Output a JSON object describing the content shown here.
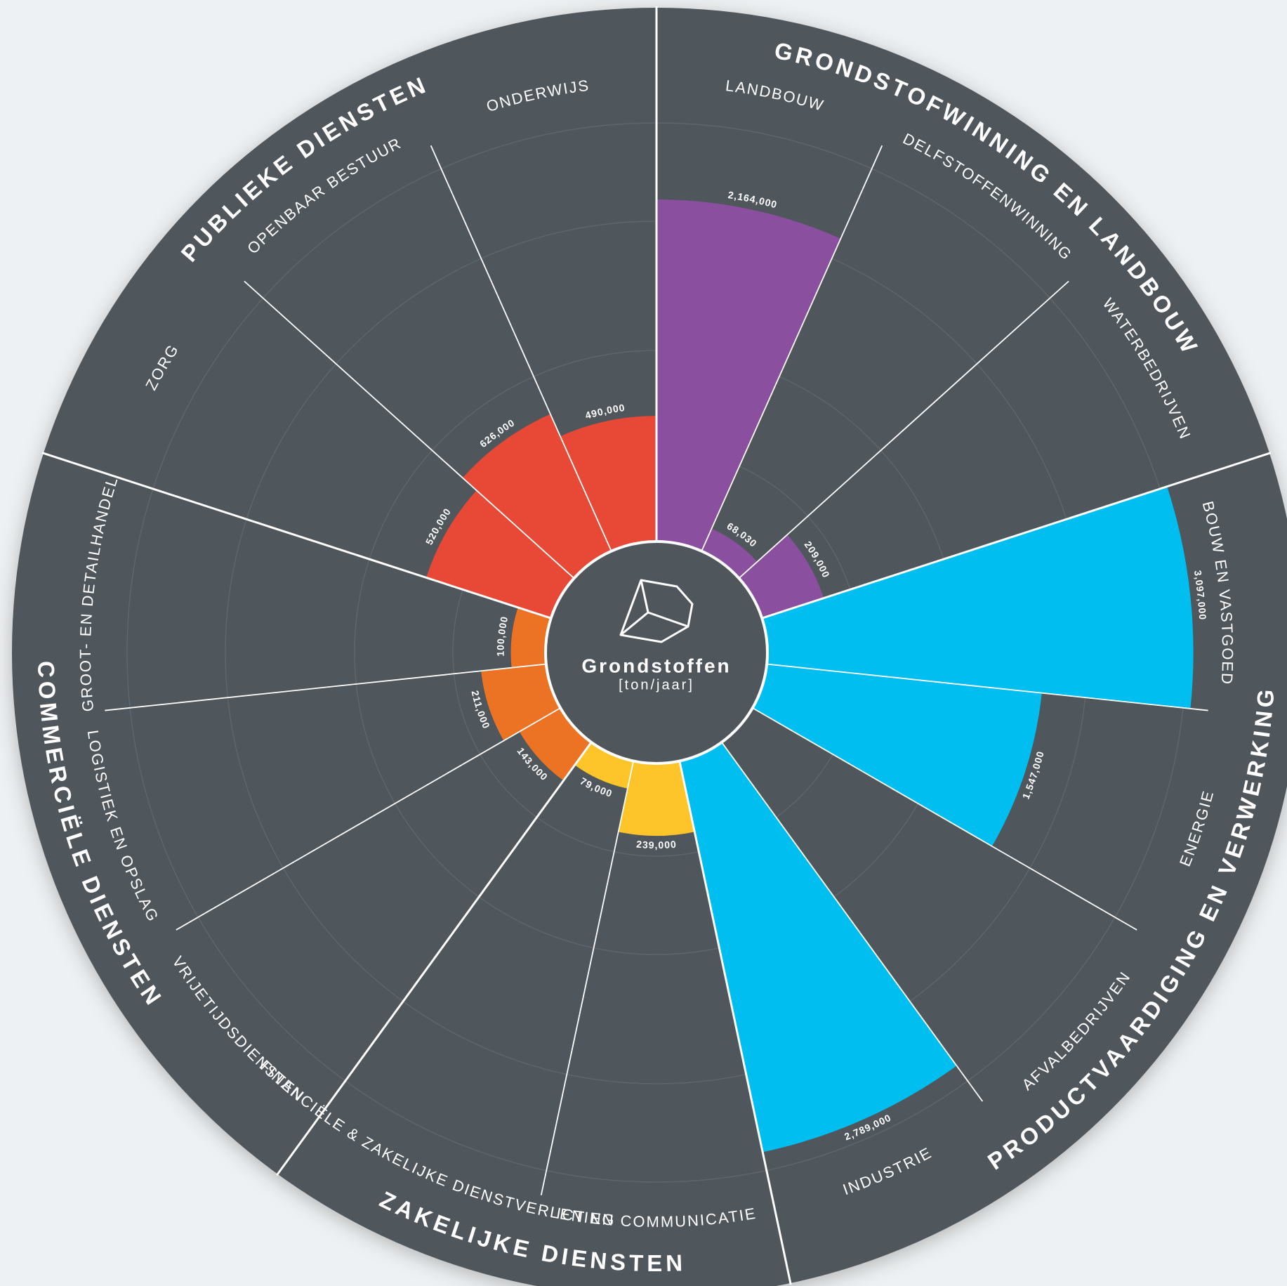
{
  "chart_data": {
    "type": "polar_bar",
    "title": "Grondstoffen",
    "subtitle": "[ton/jaar]",
    "categories": [
      "LANDBOUW",
      "DELFSTOFFENWINNING",
      "WATERBEDRIJVEN",
      "BOUW EN VASTGOED",
      "ENERGIE",
      "AFVALBEDRIJVEN",
      "INDUSTRIE",
      "ICT EN COMMUNICATIE",
      "FINANCIËLE & ZAKELIJKE DIENSTVERLENING",
      "VRIJETIJDSDIENSTEN",
      "LOGISTIEK EN OPSLAG",
      "GROOT- EN DETAILHANDEL",
      "ZORG",
      "OPENBAAR BESTUUR",
      "ONDERWIJS"
    ],
    "series": [
      {
        "name": "GRONDSTOFWINNING EN LANDBOUW",
        "color": "#8a4f9e",
        "values": [
          2164000,
          68030,
          209000,
          null,
          null,
          null,
          null,
          null,
          null,
          null,
          null,
          null,
          null,
          null,
          null
        ],
        "value_labels": [
          "2,164,000",
          "68,030",
          "209,000",
          null,
          null,
          null,
          null,
          null,
          null,
          null,
          null,
          null,
          null,
          null,
          null
        ]
      },
      {
        "name": "PRODUCTVAARDIGING EN VERWERKING",
        "color": "#00bff0",
        "values": [
          null,
          null,
          null,
          3097000,
          1547000,
          null,
          2789000,
          null,
          null,
          null,
          null,
          null,
          null,
          null,
          null
        ],
        "value_labels": [
          null,
          null,
          null,
          "3,097,000",
          "1,547,000",
          null,
          "2,789,000",
          null,
          null,
          null,
          null,
          null,
          null,
          null,
          null
        ]
      },
      {
        "name": "ZAKELIJKE DIENSTEN",
        "color": "#fec52b",
        "values": [
          null,
          null,
          null,
          null,
          null,
          null,
          null,
          239000,
          79000,
          null,
          null,
          null,
          null,
          null,
          null
        ],
        "value_labels": [
          null,
          null,
          null,
          null,
          null,
          null,
          null,
          "239,000",
          "79,000",
          null,
          null,
          null,
          null,
          null,
          null
        ]
      },
      {
        "name": "COMMERCIËLE DIENSTEN",
        "color": "#ed7324",
        "values": [
          null,
          null,
          null,
          null,
          null,
          null,
          null,
          null,
          null,
          143000,
          211000,
          100000,
          null,
          null,
          null
        ],
        "value_labels": [
          null,
          null,
          null,
          null,
          null,
          null,
          null,
          null,
          null,
          "143,000",
          "211,000",
          "100,000",
          null,
          null,
          null
        ]
      },
      {
        "name": "PUBLIEKE DIENSTEN",
        "color": "#e84936",
        "values": [
          null,
          null,
          null,
          null,
          null,
          null,
          null,
          null,
          null,
          null,
          null,
          null,
          520000,
          626000,
          490000
        ],
        "value_labels": [
          null,
          null,
          null,
          null,
          null,
          null,
          null,
          null,
          null,
          null,
          null,
          null,
          "520,000",
          "626,000",
          "490,000"
        ]
      }
    ]
  }
}
